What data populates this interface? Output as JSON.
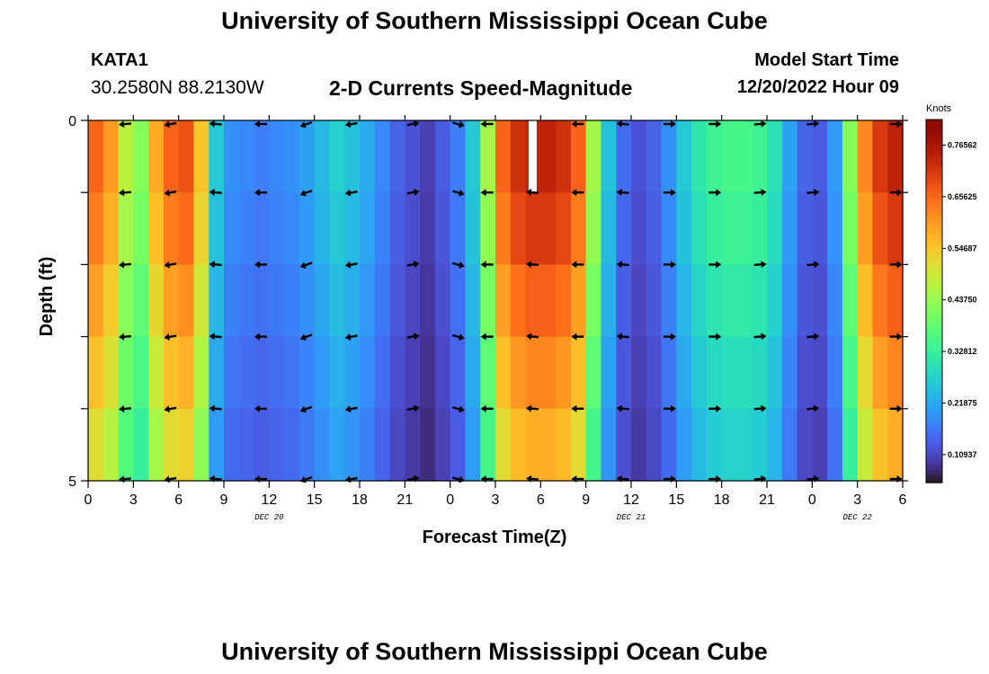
{
  "page": {
    "title": "University of Southern Mississippi Ocean Cube",
    "title_repeat": "University of Southern Mississippi Ocean Cube",
    "station_id": "KATA1",
    "location": "30.2580N  88.2130W",
    "chart_heading": "2-D Currents Speed-Magnitude",
    "model_start_label": "Model Start Time",
    "model_start_value": "12/20/2022 Hour 09"
  },
  "chart_data": {
    "type": "heatmap",
    "title": "2-D Currents Speed-Magnitude",
    "xlabel": "Forecast Time(Z)",
    "ylabel": "Depth (ft)",
    "colorbar_label": "Knots",
    "colorbar_ticks": [
      "0.76562",
      "0.65625",
      "0.54687",
      "0.43750",
      "0.32812",
      "0.21875",
      "0.10937"
    ],
    "colorbar_values": [
      0.76562,
      0.65625,
      0.54687,
      0.4375,
      0.32812,
      0.21875,
      0.10937
    ],
    "crange": [
      0.05,
      0.82
    ],
    "ylim": [
      0,
      5
    ],
    "y_ticks": [
      "0",
      "",
      "",
      "",
      "",
      "5"
    ],
    "hours": 54,
    "x_tick_labels": [
      "0",
      "3",
      "6",
      "9",
      "12",
      "15",
      "18",
      "21",
      "0",
      "3",
      "6",
      "9",
      "12",
      "15",
      "18",
      "21",
      "0",
      "3",
      "6"
    ],
    "date_labels": [
      {
        "text": "DEC 20",
        "hour": 12
      },
      {
        "text": "DEC 21",
        "hour": 36
      },
      {
        "text": "DEC 22",
        "hour": 51
      }
    ],
    "speed_profile": [
      {
        "hour": 0,
        "value": 0.66
      },
      {
        "hour": 1,
        "value": 0.6
      },
      {
        "hour": 2,
        "value": 0.47
      },
      {
        "hour": 3,
        "value": 0.42
      },
      {
        "hour": 4,
        "value": 0.58
      },
      {
        "hour": 5,
        "value": 0.66
      },
      {
        "hour": 6,
        "value": 0.68
      },
      {
        "hour": 7,
        "value": 0.55
      },
      {
        "hour": 8,
        "value": 0.26
      },
      {
        "hour": 9,
        "value": 0.19
      },
      {
        "hour": 10,
        "value": 0.18
      },
      {
        "hour": 11,
        "value": 0.17
      },
      {
        "hour": 12,
        "value": 0.18
      },
      {
        "hour": 13,
        "value": 0.19
      },
      {
        "hour": 14,
        "value": 0.21
      },
      {
        "hour": 15,
        "value": 0.24
      },
      {
        "hour": 16,
        "value": 0.27
      },
      {
        "hour": 17,
        "value": 0.25
      },
      {
        "hour": 18,
        "value": 0.22
      },
      {
        "hour": 19,
        "value": 0.18
      },
      {
        "hour": 20,
        "value": 0.14
      },
      {
        "hour": 21,
        "value": 0.12
      },
      {
        "hour": 22,
        "value": 0.1
      },
      {
        "hour": 23,
        "value": 0.13
      },
      {
        "hour": 24,
        "value": 0.17
      },
      {
        "hour": 25,
        "value": 0.26
      },
      {
        "hour": 26,
        "value": 0.45
      },
      {
        "hour": 27,
        "value": 0.66
      },
      {
        "hour": 28,
        "value": 0.72
      },
      {
        "hour": 29,
        "value": 0.74
      },
      {
        "hour": 30,
        "value": 0.74
      },
      {
        "hour": 31,
        "value": 0.72
      },
      {
        "hour": 32,
        "value": 0.66
      },
      {
        "hour": 33,
        "value": 0.45
      },
      {
        "hour": 34,
        "value": 0.25
      },
      {
        "hour": 35,
        "value": 0.15
      },
      {
        "hour": 36,
        "value": 0.12
      },
      {
        "hour": 37,
        "value": 0.14
      },
      {
        "hour": 38,
        "value": 0.19
      },
      {
        "hour": 39,
        "value": 0.26
      },
      {
        "hour": 40,
        "value": 0.31
      },
      {
        "hour": 41,
        "value": 0.34
      },
      {
        "hour": 42,
        "value": 0.35
      },
      {
        "hour": 43,
        "value": 0.35
      },
      {
        "hour": 44,
        "value": 0.34
      },
      {
        "hour": 45,
        "value": 0.3
      },
      {
        "hour": 46,
        "value": 0.21
      },
      {
        "hour": 47,
        "value": 0.14
      },
      {
        "hour": 48,
        "value": 0.13
      },
      {
        "hour": 49,
        "value": 0.2
      },
      {
        "hour": 50,
        "value": 0.42
      },
      {
        "hour": 51,
        "value": 0.62
      },
      {
        "hour": 52,
        "value": 0.71
      },
      {
        "hour": 53,
        "value": 0.74
      }
    ],
    "depth_levels": [
      0,
      1,
      2,
      3,
      4,
      5
    ],
    "depth_factor": [
      1.0,
      0.96,
      0.9,
      0.84,
      0.78,
      0.72
    ],
    "missing_cells": [
      {
        "hour": 29,
        "layer": 0
      }
    ],
    "arrow_hours": [
      2.5,
      5.5,
      8.5,
      11.5,
      14.5,
      17.5,
      21.5,
      24.5,
      26.5,
      29.5,
      32.5,
      35.5,
      38.5,
      41.5,
      44.5,
      48,
      53.5
    ],
    "arrow_direction_deg": [
      185,
      190,
      175,
      180,
      200,
      190,
      10,
      -15,
      180,
      175,
      180,
      175,
      0,
      0,
      5,
      5,
      0
    ]
  }
}
